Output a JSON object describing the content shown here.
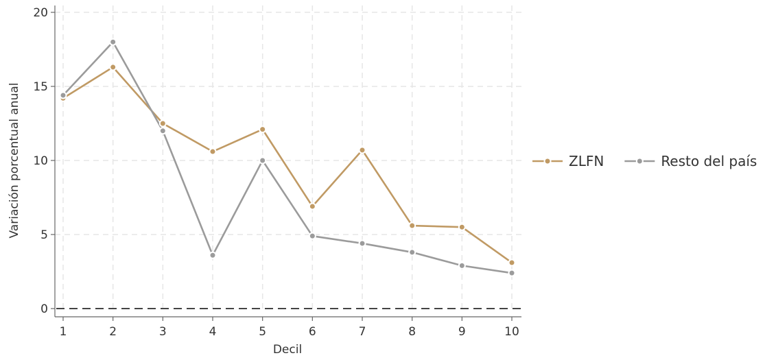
{
  "chart_data": {
    "type": "line",
    "xlabel": "Decil",
    "ylabel": "Variación porcentual anual",
    "x": [
      1,
      2,
      3,
      4,
      5,
      6,
      7,
      8,
      9,
      10
    ],
    "xlim": [
      1,
      10
    ],
    "ylim": [
      0,
      20
    ],
    "y_ticks": [
      0,
      5,
      10,
      15,
      20
    ],
    "grid": true,
    "reference_line": {
      "y": 0,
      "style": "dashed"
    },
    "legend_position": "right",
    "series": [
      {
        "name": "ZLFN",
        "color": "#C09A64",
        "values": [
          14.2,
          16.3,
          12.5,
          10.6,
          12.1,
          6.9,
          10.7,
          5.6,
          5.5,
          3.1
        ]
      },
      {
        "name": "Resto del país",
        "color": "#9B9B9B",
        "values": [
          14.4,
          18.0,
          12.0,
          3.6,
          10.0,
          4.9,
          4.4,
          3.8,
          2.9,
          2.4
        ]
      }
    ]
  }
}
